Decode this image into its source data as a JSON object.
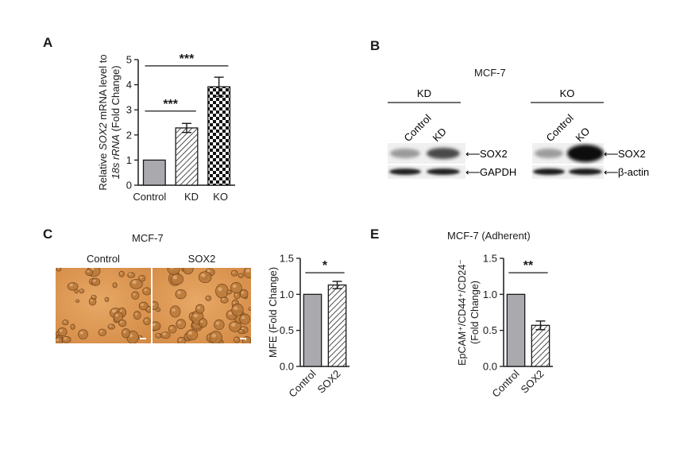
{
  "panels": {
    "A": "A",
    "B": "B",
    "C": "C",
    "E": "E"
  },
  "colors": {
    "bar_gray": "#a9a9ae",
    "ink": "#1a1a1a",
    "micro_bg": "#d38a45"
  },
  "panel_b": {
    "title": "MCF-7",
    "group_kd": "KD",
    "group_ko": "KO",
    "lanes": [
      "Control",
      "KD",
      "Control",
      "KO"
    ],
    "bands": [
      "SOX2",
      "GAPDH",
      "SOX2",
      "β-actin"
    ]
  },
  "panel_c": {
    "title": "MCF-7",
    "micro_labels": [
      "Control",
      "SOX2"
    ]
  },
  "chart_data": [
    {
      "panel": "A",
      "type": "bar",
      "categories": [
        "Control",
        "KD",
        "KO"
      ],
      "values": [
        1.0,
        2.28,
        3.92
      ],
      "errors": [
        0.0,
        0.18,
        0.38
      ],
      "patterns": [
        "solid-gray",
        "diagonal-hatch",
        "checkerboard"
      ],
      "ylabel_line1_parts": [
        "Relative ",
        "SOX2",
        " mRNA level to"
      ],
      "ylabel_line2_parts": [
        "18s rRNA",
        " (Fold Change)"
      ],
      "yticks": [
        "0",
        "1",
        "2",
        "3",
        "4",
        "5"
      ],
      "ylim": [
        0,
        5
      ],
      "significance": [
        {
          "from": 0,
          "to": 1,
          "label": "***",
          "y": 2.95
        },
        {
          "from": 0,
          "to": 2,
          "label": "***",
          "y": 4.75
        }
      ]
    },
    {
      "panel": "C",
      "type": "bar",
      "categories": [
        "Control",
        "SOX2"
      ],
      "values": [
        1.0,
        1.13
      ],
      "errors": [
        0.0,
        0.05
      ],
      "patterns": [
        "solid-gray",
        "diagonal-hatch"
      ],
      "ylabel": "MFE (Fold Change)",
      "yticks": [
        "0.0",
        "0.5",
        "1.0",
        "1.5"
      ],
      "ylim": [
        0,
        1.5
      ],
      "significance": [
        {
          "from": 0,
          "to": 1,
          "label": "*",
          "y": 1.3
        }
      ]
    },
    {
      "panel": "E",
      "type": "bar",
      "title": "MCF-7 (Adherent)",
      "categories": [
        "Control",
        "SOX2"
      ],
      "values": [
        1.0,
        0.57
      ],
      "errors": [
        0.0,
        0.06
      ],
      "patterns": [
        "solid-gray",
        "diagonal-hatch"
      ],
      "ylabel_line1": "EpCAM⁺/CD44⁺/CD24⁻",
      "ylabel_line2": "(Fold Change)",
      "yticks": [
        "0.0",
        "0.5",
        "1.0",
        "1.5"
      ],
      "ylim": [
        0,
        1.5
      ],
      "significance": [
        {
          "from": 0,
          "to": 1,
          "label": "**",
          "y": 1.3
        }
      ]
    }
  ]
}
